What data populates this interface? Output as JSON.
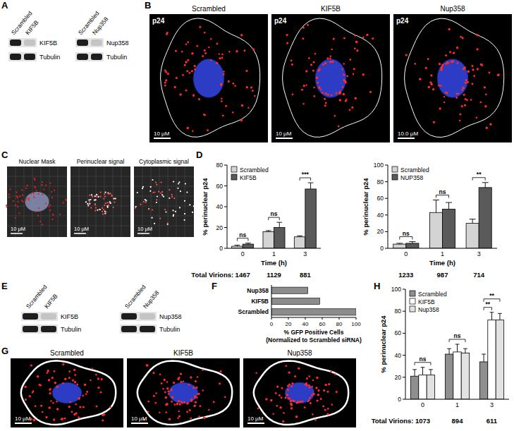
{
  "figure": {
    "panel_letters": [
      "A",
      "B",
      "C",
      "D",
      "E",
      "F",
      "G",
      "H"
    ],
    "A": {
      "blots": [
        {
          "lanes": [
            "Scrambled",
            "KIF5B"
          ],
          "bands": [
            "KIF5B",
            "Tubulin"
          ]
        },
        {
          "lanes": [
            "Scrambled",
            "Nup358"
          ],
          "bands": [
            "Nup358",
            "Tubulin"
          ]
        }
      ]
    },
    "B": {
      "images": [
        {
          "title": "Scrambled",
          "stain": "p24",
          "scale_bar": "10 µM"
        },
        {
          "title": "KIF5B",
          "stain": "p24",
          "scale_bar": "10 µM"
        },
        {
          "title": "Nup358",
          "stain": "p24",
          "scale_bar": "10.0 µM"
        }
      ]
    },
    "C": {
      "images": [
        {
          "title": "Nuclear Mask",
          "scale_bar": "10 µM"
        },
        {
          "title": "Perinuclear signal",
          "scale_bar": "10 µM"
        },
        {
          "title": "Cytoplasmic signal",
          "scale_bar": "10 µM"
        }
      ]
    },
    "E": {
      "blots": [
        {
          "lanes": [
            "Scrambled",
            "KIF5B"
          ],
          "bands": [
            "KIF5B",
            "Tubulin"
          ]
        },
        {
          "lanes": [
            "Scrambled",
            "Nup358"
          ],
          "bands": [
            "Nup358",
            "Tubulin"
          ]
        }
      ]
    },
    "G": {
      "images": [
        {
          "title": "Scrambled",
          "scale_bar": "10 µM"
        },
        {
          "title": "KIF5B",
          "scale_bar": "10 µM"
        },
        {
          "title": "Nup358",
          "scale_bar": "10 µM"
        }
      ]
    }
  },
  "chart_data": [
    {
      "type": "bar",
      "categories": [
        "0",
        "1",
        "3"
      ],
      "xlabel": "Time (h)",
      "ylabel": "% perinuclear p24",
      "ylim": [
        0,
        80
      ],
      "yticks": [
        0,
        20,
        40,
        60,
        80
      ],
      "legend": "upper left",
      "series": [
        {
          "name": "Scrambled",
          "color": "#d4d4d4",
          "values": [
            2,
            16,
            11
          ],
          "errors": [
            1,
            1,
            1
          ]
        },
        {
          "name": "KIF5B",
          "color": "#5a5a5a",
          "values": [
            4,
            20,
            57
          ],
          "errors": [
            1,
            5,
            6
          ]
        }
      ],
      "significance": [
        [
          "ns"
        ],
        [
          "ns"
        ],
        [
          "***"
        ]
      ],
      "total_virions_label": "Total Virions:",
      "total_virions": [
        1467,
        1129,
        881
      ]
    },
    {
      "type": "bar",
      "categories": [
        "0",
        "1",
        "3"
      ],
      "xlabel": "Time (h)",
      "ylabel": "% perinuclear p24",
      "ylim": [
        0,
        100
      ],
      "yticks": [
        0,
        20,
        40,
        60,
        80,
        100
      ],
      "legend": "upper left",
      "series": [
        {
          "name": "Scrambled",
          "color": "#d4d4d4",
          "values": [
            5,
            43,
            30
          ],
          "errors": [
            1,
            15,
            5
          ]
        },
        {
          "name": "NUP358",
          "color": "#5a5a5a",
          "values": [
            6,
            47,
            73
          ],
          "errors": [
            2,
            8,
            6
          ]
        }
      ],
      "significance": [
        [
          "ns"
        ],
        [
          "ns"
        ],
        [
          "**"
        ]
      ],
      "total_virions": [
        1233,
        987,
        714
      ]
    },
    {
      "type": "bar",
      "orientation": "horizontal",
      "categories": [
        "Nup358",
        "KIF5B",
        "Scrambled"
      ],
      "values": [
        43,
        57,
        100
      ],
      "color": "#8c8c8c",
      "xlim": [
        0,
        100
      ],
      "xticks": [
        0,
        20,
        40,
        60,
        80,
        100
      ],
      "xlabel": [
        "% GFP Positive Cells",
        "(Normalized to Scrambled siRNA)"
      ]
    },
    {
      "type": "bar",
      "categories": [
        "0",
        "1",
        "3"
      ],
      "ylabel": "% perinuclear p24",
      "ylim": [
        0,
        100
      ],
      "yticks": [
        0,
        20,
        40,
        60,
        80,
        100
      ],
      "legend": "upper left",
      "series": [
        {
          "name": "Scrambled",
          "color": "#8f8f8f",
          "values": [
            21,
            41,
            34
          ],
          "errors": [
            6,
            5,
            7
          ]
        },
        {
          "name": "KIF5B",
          "color": "#ffffff",
          "values": [
            22,
            43,
            72
          ],
          "errors": [
            7,
            7,
            7
          ]
        },
        {
          "name": "Nup358",
          "color": "#e2e2e2",
          "values": [
            22,
            42,
            72
          ],
          "errors": [
            5,
            4,
            6
          ]
        }
      ],
      "significance": [
        [
          "ns"
        ],
        [
          "ns"
        ],
        [
          "**",
          "**"
        ]
      ],
      "total_virions_label": "Total Virions:",
      "total_virions": [
        1073,
        894,
        611
      ]
    }
  ]
}
